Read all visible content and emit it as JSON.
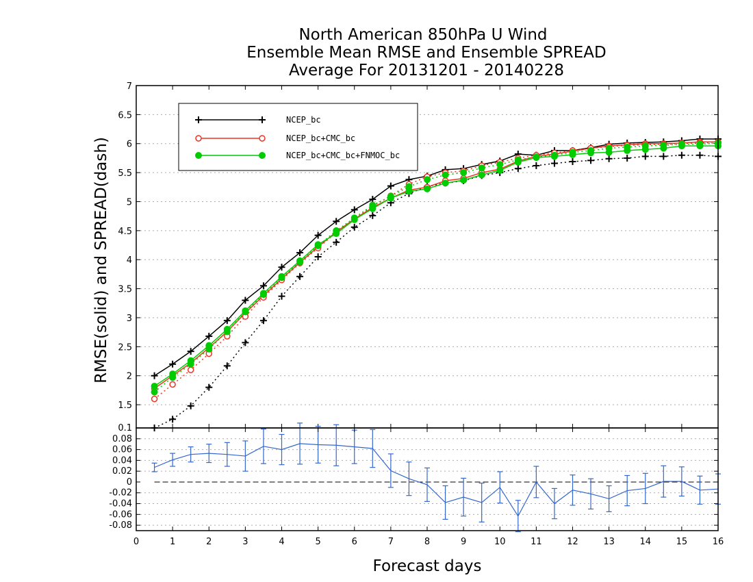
{
  "chart_data": [
    {
      "type": "line",
      "title_lines": [
        "North American 850hPa U Wind",
        "Ensemble Mean RMSE and Ensemble SPREAD",
        "Average For 20131201 - 20140228"
      ],
      "ylabel": "RMSE(solid) and SPREAD(dash)",
      "xlabel": "Forecast days",
      "xlim": [
        0,
        16
      ],
      "ylim": [
        1.1,
        7
      ],
      "x_ticks": [
        "0",
        "1",
        "2",
        "3",
        "4",
        "5",
        "6",
        "7",
        "8",
        "9",
        "10",
        "11",
        "12",
        "13",
        "14",
        "15",
        "16"
      ],
      "y_ticks": [
        "1.5",
        "2",
        "2.5",
        "3",
        "3.5",
        "4",
        "4.5",
        "5",
        "5.5",
        "6",
        "6.5",
        "7"
      ],
      "grid": true,
      "legend_position": "top-left",
      "x": [
        0.5,
        1,
        1.5,
        2,
        2.5,
        3,
        3.5,
        4,
        4.5,
        5,
        5.5,
        6,
        6.5,
        7,
        7.5,
        8,
        8.5,
        9,
        9.5,
        10,
        10.5,
        11,
        11.5,
        12,
        12.5,
        13,
        13.5,
        14,
        14.5,
        15,
        15.5,
        16
      ],
      "series": [
        {
          "name": "NCEP_bc",
          "color": "#000000",
          "marker": "plus",
          "rmse": [
            2.0,
            2.2,
            2.42,
            2.68,
            2.95,
            3.3,
            3.55,
            3.87,
            4.12,
            4.42,
            4.66,
            4.86,
            5.04,
            5.27,
            5.38,
            5.44,
            5.55,
            5.57,
            5.64,
            5.7,
            5.82,
            5.8,
            5.88,
            5.88,
            5.93,
            5.99,
            6.01,
            6.02,
            6.03,
            6.05,
            6.08,
            6.08
          ],
          "spread": [
            1.1,
            1.25,
            1.48,
            1.8,
            2.17,
            2.57,
            2.95,
            3.37,
            3.71,
            4.05,
            4.3,
            4.56,
            4.76,
            4.98,
            5.14,
            5.26,
            5.32,
            5.36,
            5.45,
            5.5,
            5.57,
            5.62,
            5.66,
            5.69,
            5.71,
            5.74,
            5.75,
            5.78,
            5.78,
            5.8,
            5.8,
            5.78
          ]
        },
        {
          "name": "NCEP_bc+CMC_bc",
          "color": "#ee3322",
          "marker": "circle",
          "rmse": [
            1.78,
            2.0,
            2.22,
            2.48,
            2.76,
            3.08,
            3.38,
            3.67,
            3.95,
            4.22,
            4.48,
            4.7,
            4.9,
            5.06,
            5.2,
            5.25,
            5.36,
            5.4,
            5.5,
            5.56,
            5.7,
            5.78,
            5.82,
            5.87,
            5.92,
            5.96,
            5.98,
            6.0,
            6.0,
            6.01,
            6.03,
            6.03
          ],
          "spread": [
            1.6,
            1.85,
            2.1,
            2.38,
            2.68,
            3.02,
            3.35,
            3.65,
            3.94,
            4.2,
            4.47,
            4.7,
            4.92,
            5.1,
            5.3,
            5.43,
            5.5,
            5.53,
            5.62,
            5.68,
            5.75,
            5.8,
            5.84,
            5.88,
            5.92,
            5.95,
            5.97,
            5.98,
            5.99,
            6.0,
            6.01,
            6.03
          ]
        },
        {
          "name": "NCEP_bc+CMC_bc+FNMOC_bc",
          "color": "#00cc00",
          "marker": "filled-circle",
          "rmse": [
            1.82,
            2.03,
            2.26,
            2.52,
            2.8,
            3.12,
            3.42,
            3.71,
            3.98,
            4.26,
            4.45,
            4.69,
            4.88,
            5.06,
            5.18,
            5.22,
            5.32,
            5.37,
            5.46,
            5.54,
            5.68,
            5.76,
            5.78,
            5.81,
            5.84,
            5.85,
            5.88,
            5.9,
            5.92,
            5.96,
            5.96,
            5.96
          ],
          "spread": [
            1.72,
            1.97,
            2.2,
            2.46,
            2.76,
            3.1,
            3.4,
            3.69,
            3.96,
            4.24,
            4.5,
            4.72,
            4.94,
            5.09,
            5.26,
            5.38,
            5.46,
            5.5,
            5.58,
            5.64,
            5.72,
            5.77,
            5.8,
            5.85,
            5.88,
            5.92,
            5.94,
            5.96,
            5.97,
            5.99,
            5.99,
            6.01
          ]
        }
      ]
    },
    {
      "type": "line",
      "xlim": [
        0,
        16
      ],
      "ylim": [
        -0.09,
        0.1
      ],
      "y_ticks": [
        "-0.08",
        "-0.06",
        "-0.04",
        "-0.02",
        "0",
        "0.02",
        "0.04",
        "0.06",
        "0.08",
        "0.1"
      ],
      "grid": true,
      "series": [
        {
          "color": "#3366cc",
          "x": [
            0.5,
            1,
            1.5,
            2,
            2.5,
            3,
            3.5,
            4,
            4.5,
            5,
            5.5,
            6,
            6.5,
            7,
            7.5,
            8,
            8.5,
            9,
            9.5,
            10,
            10.5,
            11,
            11.5,
            12,
            12.5,
            13,
            13.5,
            14,
            14.5,
            15,
            15.5,
            16
          ],
          "values": [
            0.027,
            0.041,
            0.051,
            0.053,
            0.051,
            0.048,
            0.066,
            0.06,
            0.071,
            0.069,
            0.068,
            0.065,
            0.062,
            0.021,
            0.006,
            -0.005,
            -0.038,
            -0.028,
            -0.038,
            -0.01,
            -0.063,
            0.0,
            -0.04,
            -0.015,
            -0.022,
            -0.031,
            -0.016,
            -0.012,
            0.001,
            0.001,
            -0.015,
            -0.013
          ],
          "error": [
            0.008,
            0.012,
            0.014,
            0.017,
            0.022,
            0.028,
            0.032,
            0.028,
            0.038,
            0.034,
            0.038,
            0.031,
            0.035,
            0.031,
            0.031,
            0.031,
            0.031,
            0.035,
            0.036,
            0.029,
            0.029,
            0.029,
            0.028,
            0.028,
            0.028,
            0.024,
            0.028,
            0.028,
            0.029,
            0.027,
            0.026,
            0.028
          ]
        }
      ]
    }
  ]
}
